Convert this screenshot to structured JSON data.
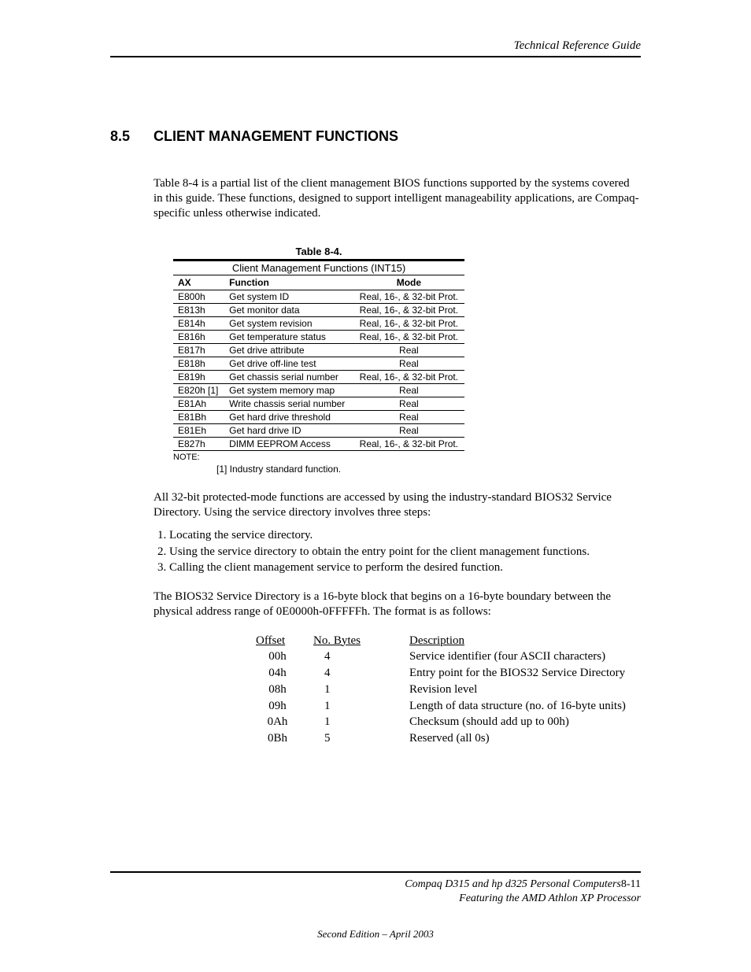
{
  "header": {
    "title": "Technical Reference Guide"
  },
  "section": {
    "number": "8.5",
    "title": "CLIENT MANAGEMENT FUNCTIONS",
    "intro": "Table 8-4 is a partial list of the client management BIOS functions supported by the systems covered in this guide. These functions, designed to support intelligent manageability applications, are Compaq-specific unless otherwise indicated."
  },
  "table84": {
    "caption": "Table 8-4.",
    "subtitle": "Client Management Functions (INT15)",
    "columns": [
      "AX",
      "Function",
      "Mode"
    ],
    "rows": [
      [
        "E800h",
        "Get system ID",
        "Real, 16-, & 32-bit Prot."
      ],
      [
        "E813h",
        "Get monitor data",
        "Real, 16-, & 32-bit Prot."
      ],
      [
        "E814h",
        "Get system revision",
        "Real, 16-, & 32-bit Prot."
      ],
      [
        "E816h",
        "Get temperature status",
        "Real, 16-, & 32-bit Prot."
      ],
      [
        "E817h",
        "Get drive attribute",
        "Real"
      ],
      [
        "E818h",
        "Get drive off-line test",
        "Real"
      ],
      [
        "E819h",
        "Get chassis serial number",
        "Real, 16-, & 32-bit Prot."
      ],
      [
        "E820h [1]",
        "Get system memory map",
        "Real"
      ],
      [
        "E81Ah",
        "Write chassis serial number",
        "Real"
      ],
      [
        "E81Bh",
        "Get hard drive threshold",
        "Real"
      ],
      [
        "E81Eh",
        "Get hard drive ID",
        "Real"
      ],
      [
        "E827h",
        "DIMM EEPROM Access",
        "Real, 16-, & 32-bit Prot."
      ]
    ],
    "note_label": "NOTE:",
    "note_body": "[1] Industry standard function."
  },
  "para2": "All 32-bit protected-mode functions are accessed by using the industry-standard BIOS32 Service Directory.  Using the service directory involves three steps:",
  "steps": [
    "Locating the service directory.",
    "Using the service directory to obtain the entry point for the client management functions.",
    "Calling the client management service to perform the desired function."
  ],
  "para3": "The BIOS32 Service Directory is a 16-byte block that begins on a 16-byte boundary between the physical address range of 0E0000h-0FFFFFh. The format is as follows:",
  "offset_table": {
    "columns": [
      "Offset",
      "No. Bytes",
      "Description"
    ],
    "rows": [
      [
        "00h",
        "4",
        "Service identifier (four ASCII characters)"
      ],
      [
        "04h",
        "4",
        "Entry point for the BIOS32 Service Directory"
      ],
      [
        "08h",
        "1",
        "Revision level"
      ],
      [
        "09h",
        "1",
        "Length of data structure (no. of 16-byte units)"
      ],
      [
        "0Ah",
        "1",
        "Checksum (should add up to 00h)"
      ],
      [
        "0Bh",
        "5",
        "Reserved (all 0s)"
      ]
    ]
  },
  "footer": {
    "line1a": "Compaq D315 and hp d325 Personal Computers",
    "line1b": "8-11",
    "line2": "Featuring the AMD Athlon XP Processor",
    "edition": "Second Edition – April 2003"
  }
}
